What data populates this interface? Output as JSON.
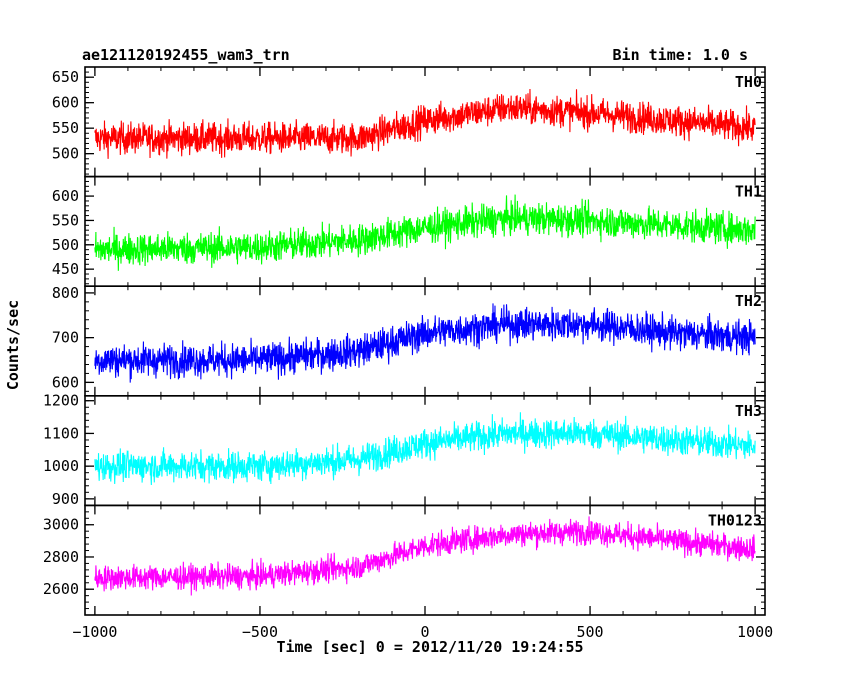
{
  "header": {
    "left_title": "ae121120192455_wam3_trn",
    "right_title": "Bin time: 1.0 s"
  },
  "chart_data": {
    "type": "line",
    "layout": "stacked-panels",
    "xlabel": "Time [sec] 0 = 2012/11/20 19:24:55",
    "ylabel": "Counts/sec",
    "xlim": [
      -1030,
      1030
    ],
    "xticks": [
      -1000,
      -500,
      0,
      500,
      1000
    ],
    "xtick_labels": [
      "−1000",
      "−500",
      "0",
      "500",
      "1000"
    ],
    "x_start": -1000,
    "x_end": 1000,
    "x_step": 1,
    "anchor_x": [
      -1000,
      -500,
      -200,
      0,
      250,
      500,
      750,
      1000
    ],
    "panels": [
      {
        "name": "TH0",
        "color": "#ff0000",
        "ylim": [
          455,
          670
        ],
        "yticks": [
          500,
          550,
          600,
          650
        ],
        "trend": [
          530,
          530,
          530,
          565,
          590,
          580,
          565,
          550
        ],
        "noise_amplitude": 30
      },
      {
        "name": "TH1",
        "color": "#00ff00",
        "ylim": [
          415,
          640
        ],
        "yticks": [
          450,
          500,
          550,
          600
        ],
        "trend": [
          490,
          495,
          510,
          535,
          555,
          550,
          540,
          530
        ],
        "noise_amplitude": 32
      },
      {
        "name": "TH2",
        "color": "#0000ff",
        "ylim": [
          570,
          815
        ],
        "yticks": [
          600,
          700,
          800
        ],
        "trend": [
          650,
          650,
          670,
          710,
          730,
          730,
          710,
          700
        ],
        "noise_amplitude": 36
      },
      {
        "name": "TH3",
        "color": "#00ffff",
        "ylim": [
          880,
          1215
        ],
        "yticks": [
          900,
          1000,
          1100,
          1200
        ],
        "trend": [
          1000,
          1000,
          1020,
          1070,
          1100,
          1100,
          1080,
          1060
        ],
        "noise_amplitude": 45
      },
      {
        "name": "TH0123",
        "color": "#ff00ff",
        "ylim": [
          2440,
          3120
        ],
        "yticks": [
          2600,
          2800,
          3000
        ],
        "trend": [
          2670,
          2680,
          2740,
          2870,
          2940,
          2960,
          2900,
          2850
        ],
        "noise_amplitude": 75
      }
    ]
  }
}
